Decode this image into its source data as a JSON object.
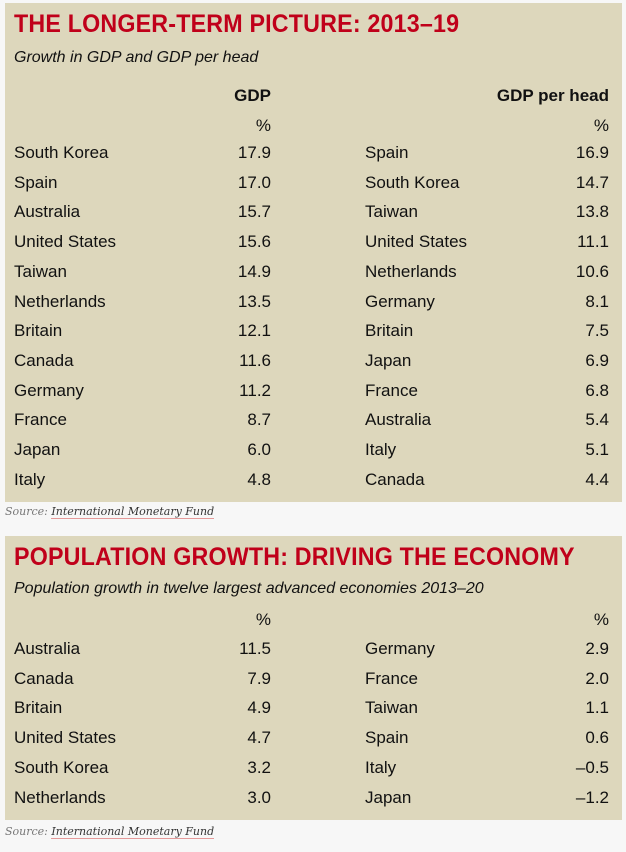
{
  "chart1": {
    "title": "THE LONGER-TERM PICTURE: 2013–19",
    "subtitle": "Growth in GDP and GDP per head",
    "left_header": "GDP",
    "right_header": "GDP per head",
    "unit": "%",
    "left": [
      {
        "country": "South Korea",
        "value": "17.9"
      },
      {
        "country": "Spain",
        "value": "17.0"
      },
      {
        "country": "Australia",
        "value": "15.7"
      },
      {
        "country": "United States",
        "value": "15.6"
      },
      {
        "country": "Taiwan",
        "value": "14.9"
      },
      {
        "country": "Netherlands",
        "value": "13.5"
      },
      {
        "country": "Britain",
        "value": "12.1"
      },
      {
        "country": "Canada",
        "value": "11.6"
      },
      {
        "country": "Germany",
        "value": "11.2"
      },
      {
        "country": "France",
        "value": "8.7"
      },
      {
        "country": "Japan",
        "value": "6.0"
      },
      {
        "country": "Italy",
        "value": "4.8"
      }
    ],
    "right": [
      {
        "country": "Spain",
        "value": "16.9"
      },
      {
        "country": "South Korea",
        "value": "14.7"
      },
      {
        "country": "Taiwan",
        "value": "13.8"
      },
      {
        "country": "United States",
        "value": "11.1"
      },
      {
        "country": "Netherlands",
        "value": "10.6"
      },
      {
        "country": "Germany",
        "value": "8.1"
      },
      {
        "country": "Britain",
        "value": "7.5"
      },
      {
        "country": "Japan",
        "value": "6.9"
      },
      {
        "country": "France",
        "value": "6.8"
      },
      {
        "country": "Australia",
        "value": "5.4"
      },
      {
        "country": "Italy",
        "value": "5.1"
      },
      {
        "country": "Canada",
        "value": "4.4"
      }
    ],
    "source_label": "Source:",
    "source_link": "International Monetary Fund"
  },
  "chart2": {
    "title": "POPULATION GROWTH: DRIVING THE ECONOMY",
    "subtitle": "Population growth in twelve largest advanced economies 2013–20",
    "unit": "%",
    "left": [
      {
        "country": "Australia",
        "value": "11.5"
      },
      {
        "country": "Canada",
        "value": "7.9"
      },
      {
        "country": "Britain",
        "value": "4.9"
      },
      {
        "country": "United States",
        "value": "4.7"
      },
      {
        "country": "South Korea",
        "value": "3.2"
      },
      {
        "country": "Netherlands",
        "value": "3.0"
      }
    ],
    "right": [
      {
        "country": "Germany",
        "value": "2.9"
      },
      {
        "country": "France",
        "value": "2.0"
      },
      {
        "country": "Taiwan",
        "value": "1.1"
      },
      {
        "country": "Spain",
        "value": "0.6"
      },
      {
        "country": "Italy",
        "value": "–0.5"
      },
      {
        "country": "Japan",
        "value": "–1.2"
      }
    ],
    "source_label": "Source:",
    "source_link": "International Monetary Fund"
  }
}
